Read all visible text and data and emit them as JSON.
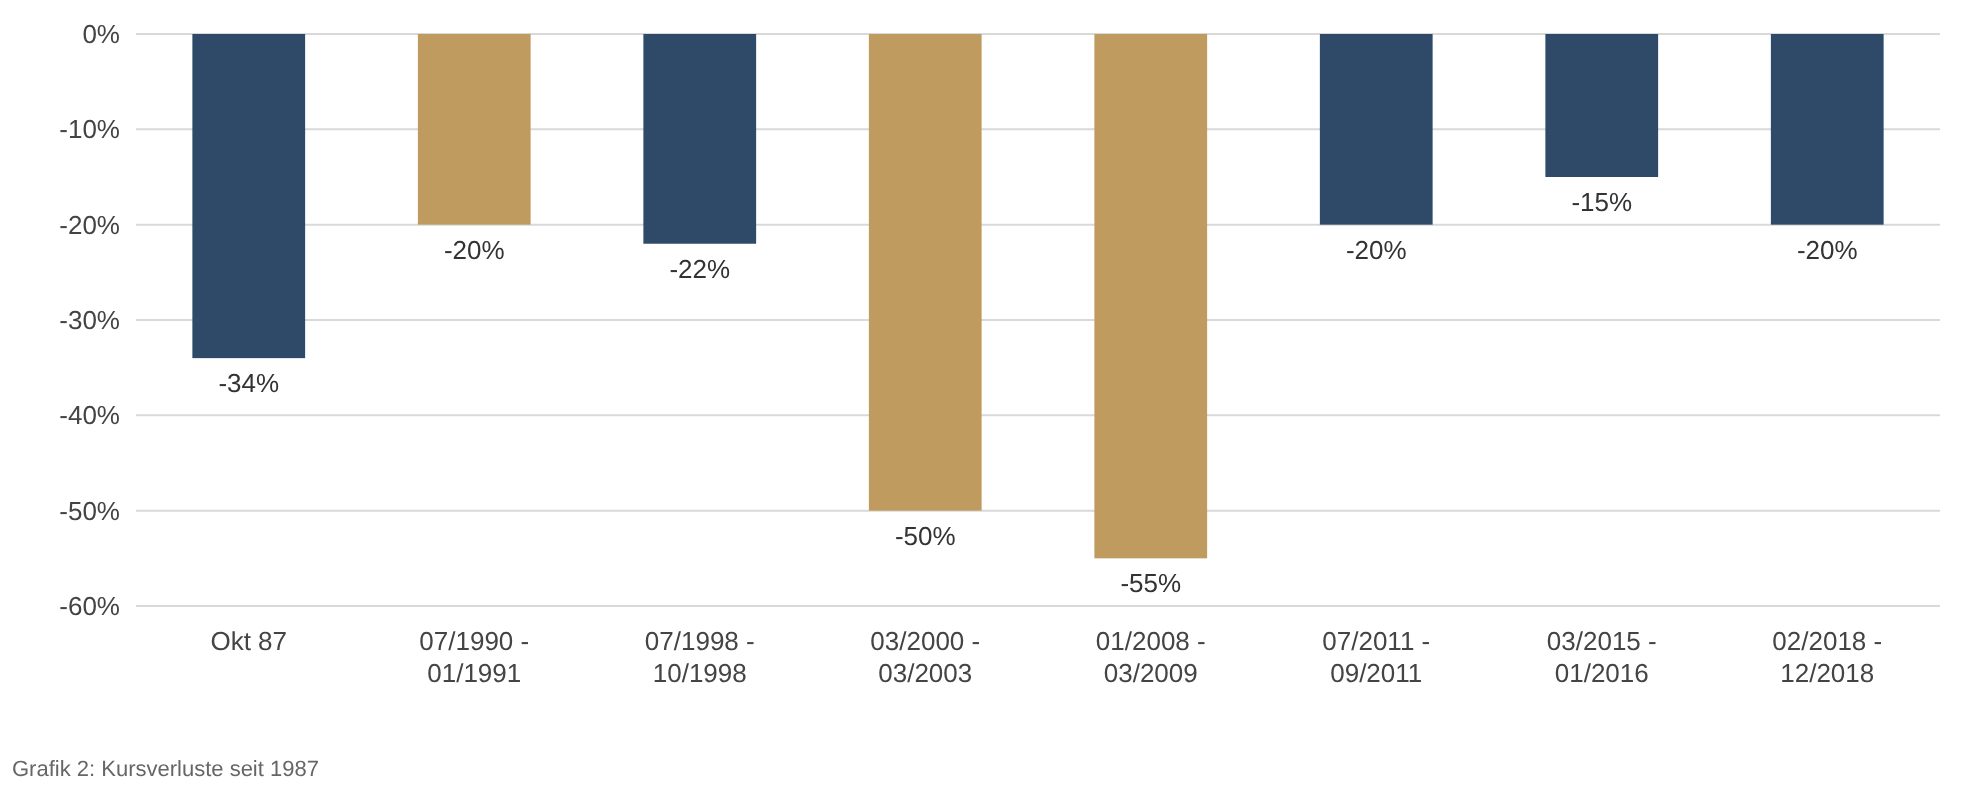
{
  "chart_data": {
    "type": "bar",
    "categories": [
      "Okt 87",
      "07/1990 - 01/1991",
      "07/1998 - 10/1998",
      "03/2000 - 03/2003",
      "01/2008 - 03/2009",
      "07/2011 - 09/2011",
      "03/2015 - 01/2016",
      "02/2018 - 12/2018"
    ],
    "values": [
      -34,
      -20,
      -22,
      -50,
      -55,
      -20,
      -15,
      -20
    ],
    "colors": [
      "#2e4a68",
      "#bf9b5f",
      "#2e4a68",
      "#bf9b5f",
      "#bf9b5f",
      "#2e4a68",
      "#2e4a68",
      "#2e4a68"
    ],
    "value_labels": [
      "-34%",
      "-20%",
      "-22%",
      "-50%",
      "-55%",
      "-20%",
      "-15%",
      "-20%"
    ],
    "ylim": [
      -60,
      0
    ],
    "yticks": [
      {
        "value": 0,
        "label": "0%"
      },
      {
        "value": -10,
        "label": "-10%"
      },
      {
        "value": -20,
        "label": "-20%"
      },
      {
        "value": -30,
        "label": "-30%"
      },
      {
        "value": -40,
        "label": "-40%"
      },
      {
        "value": -50,
        "label": "-50%"
      },
      {
        "value": -60,
        "label": "-60%"
      }
    ],
    "grid": "y",
    "annotations": [
      "Grafik 2: Kursverluste seit 1987"
    ]
  }
}
